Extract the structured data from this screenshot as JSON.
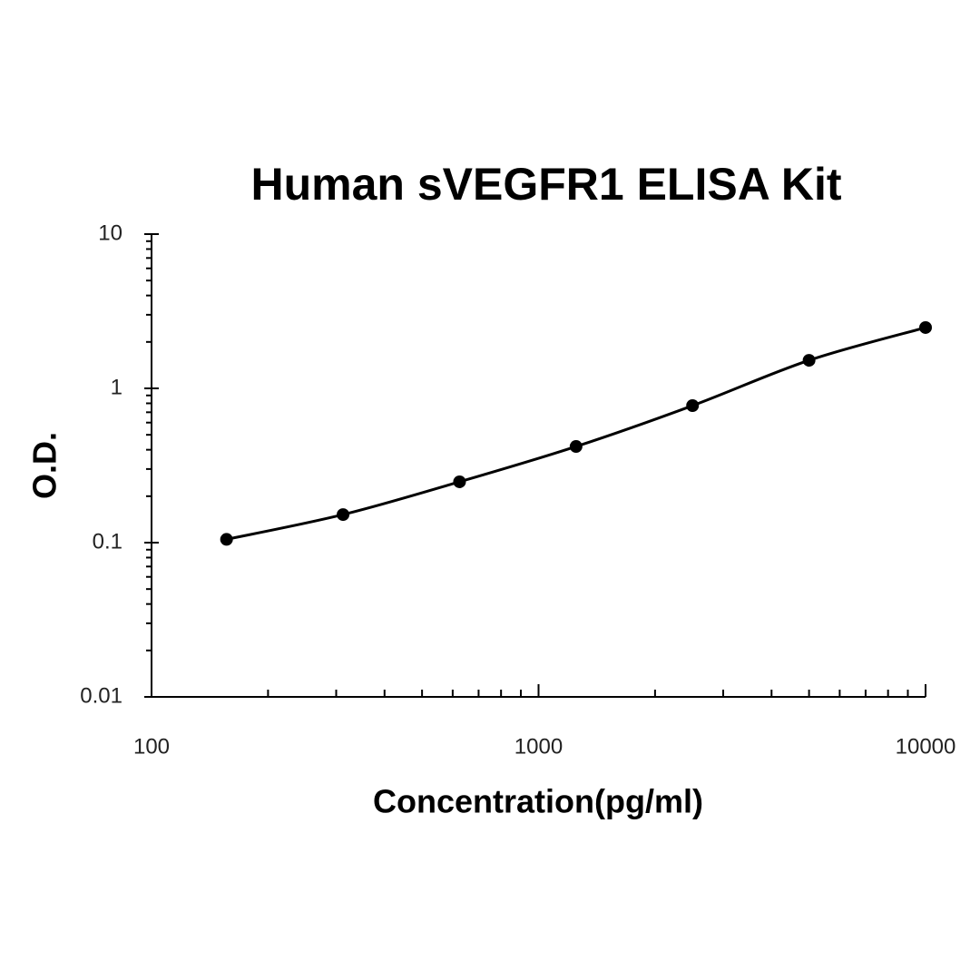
{
  "chart_data": {
    "type": "line",
    "title": "Human sVEGFR1 ELISA Kit",
    "x_label": "Concentration(pg/ml)",
    "y_label": "O.D.",
    "x": [
      156.25,
      312.5,
      625,
      1250,
      2500,
      5000,
      10000
    ],
    "values": [
      0.105,
      0.152,
      0.248,
      0.42,
      0.773,
      1.52,
      2.48
    ],
    "color": "#000000",
    "xscale": "log",
    "yscale": "log",
    "xlim": [
      100,
      10000
    ],
    "xticks": [
      100,
      1000,
      10000
    ],
    "ylim": [
      0.01,
      10
    ],
    "yticks": [
      0.01,
      0.1,
      1,
      10
    ]
  }
}
